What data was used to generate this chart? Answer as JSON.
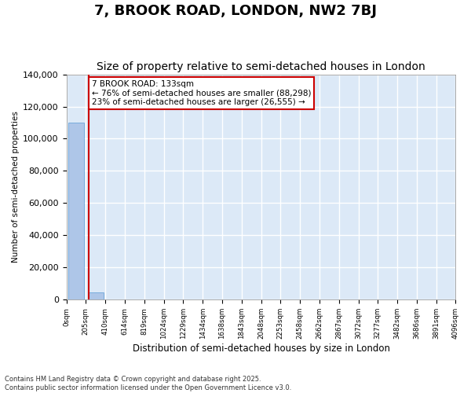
{
  "title": "7, BROOK ROAD, LONDON, NW2 7BJ",
  "subtitle": "Size of property relative to semi-detached houses in London",
  "xlabel": "Distribution of semi-detached houses by size in London",
  "ylabel": "Number of semi-detached properties",
  "annotation_text": "7 BROOK ROAD: 133sqm\n← 76% of semi-detached houses are smaller (88,298)\n23% of semi-detached houses are larger (26,555) →",
  "bar_color": "#aec6e8",
  "bar_edge_color": "#5b9bd5",
  "vline_color": "#cc0000",
  "annotation_box_color": "#cc0000",
  "background_color": "#dce9f7",
  "grid_color": "#ffffff",
  "tick_labels": [
    "0sqm",
    "205sqm",
    "410sqm",
    "614sqm",
    "819sqm",
    "1024sqm",
    "1229sqm",
    "1434sqm",
    "1638sqm",
    "1843sqm",
    "2048sqm",
    "2253sqm",
    "2458sqm",
    "2662sqm",
    "2867sqm",
    "3072sqm",
    "3277sqm",
    "3482sqm",
    "3686sqm",
    "3891sqm"
  ],
  "last_tick_label": "4096sqm",
  "bar_heights": [
    110000,
    4500,
    400,
    100,
    50,
    30,
    20,
    15,
    10,
    8,
    5,
    4,
    3,
    2,
    2,
    1,
    1,
    1,
    1,
    1
  ],
  "ylim": [
    0,
    140000
  ],
  "yticks": [
    0,
    20000,
    40000,
    60000,
    80000,
    100000,
    120000,
    140000
  ],
  "footnote": "Contains HM Land Registry data © Crown copyright and database right 2025.\nContains public sector information licensed under the Open Government Licence v3.0.",
  "vline_x": 0.65,
  "title_fontsize": 13,
  "subtitle_fontsize": 10
}
